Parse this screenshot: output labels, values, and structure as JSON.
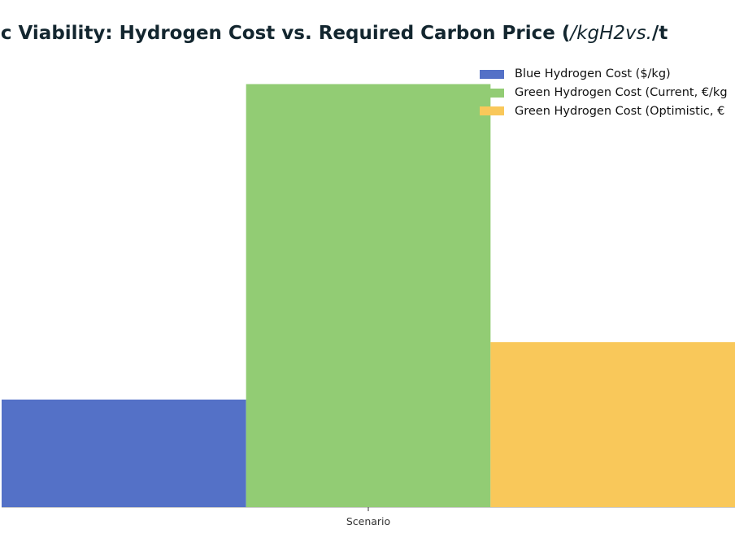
{
  "title": {
    "prefix": "ic Viability: Hydrogen Cost vs. Required Carbon Price (",
    "math": "/kgH2vs.",
    "suffix": "/t"
  },
  "chart_data": {
    "type": "bar",
    "categories": [
      "Scenario"
    ],
    "series": [
      {
        "name": "Blue Hydrogen Cost ($/kg)",
        "values": [
          1.5
        ],
        "color": "#5471c7"
      },
      {
        "name": "Green Hydrogen Cost (Current, €/kg",
        "values": [
          5.9
        ],
        "color": "#92cc74"
      },
      {
        "name": "Green Hydrogen Cost (Optimistic, €",
        "values": [
          2.3
        ],
        "color": "#f9c85a"
      }
    ],
    "xlabel": "",
    "ylim": [
      0,
      6.2
    ],
    "grid": false,
    "legend_position": "top-right",
    "axis_color": "#cccccc"
  }
}
